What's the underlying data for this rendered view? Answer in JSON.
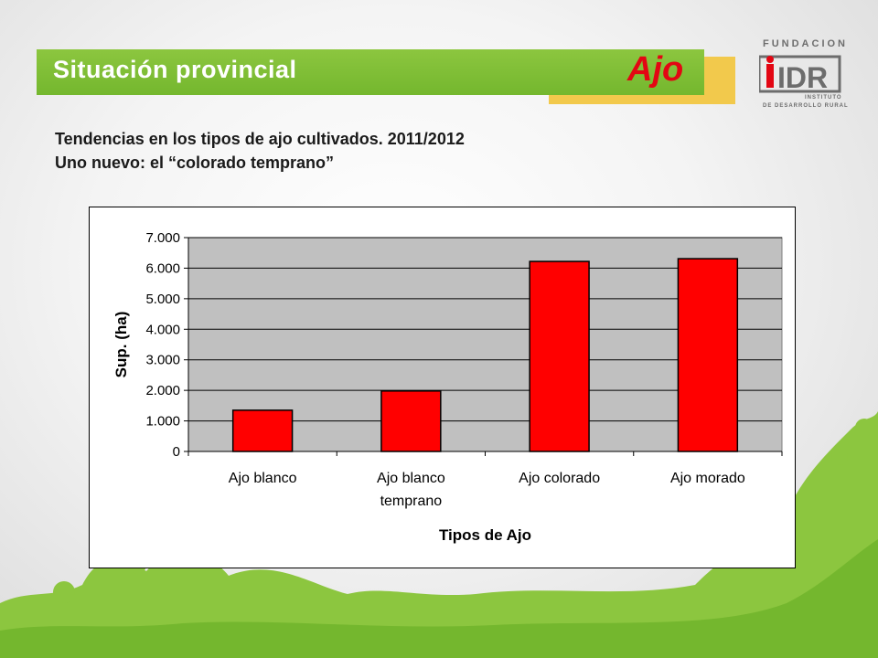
{
  "header": {
    "title": "Situación provincial",
    "tag": "Ajo"
  },
  "logo": {
    "top_text": "FUNDACION",
    "mark_text": "IDR",
    "sub_line1": "INSTITUTO",
    "sub_line2": "DE DESARROLLO RURAL"
  },
  "subtitle_lines": [
    "Tendencias en los tipos de ajo cultivados. 2011/2012",
    "Uno nuevo: el “colorado temprano”"
  ],
  "colors": {
    "banner_green": "#7ab833",
    "accent_yellow": "#f2c94c",
    "tag_red": "#e30613",
    "bar_fill": "#ff0000",
    "plot_bg": "#c0c0c0"
  },
  "chart_data": {
    "type": "bar",
    "categories": [
      [
        "Ajo blanco"
      ],
      [
        "Ajo blanco",
        "temprano"
      ],
      [
        "Ajo colorado"
      ],
      [
        "Ajo morado"
      ]
    ],
    "values": [
      1350,
      1980,
      6220,
      6310
    ],
    "xlabel": "Tipos de Ajo",
    "ylabel": "Sup. (ha)",
    "ylim": [
      0,
      7000
    ],
    "yticks": [
      0,
      1000,
      2000,
      3000,
      4000,
      5000,
      6000,
      7000
    ],
    "ytick_labels": [
      "0",
      "1.000",
      "2.000",
      "3.000",
      "4.000",
      "5.000",
      "6.000",
      "7.000"
    ],
    "grid": true,
    "legend": "none"
  }
}
